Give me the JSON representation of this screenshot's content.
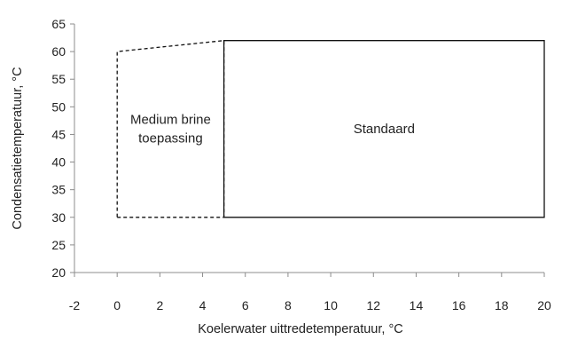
{
  "chart_data": {
    "type": "operating-envelope",
    "xlabel": "Koelerwater uittredetemperatuur, °C",
    "ylabel": "Condensatietemperatuur, °C",
    "xlim": [
      -2,
      20
    ],
    "ylim": [
      20,
      65
    ],
    "x_ticks": [
      -2,
      0,
      2,
      4,
      6,
      8,
      10,
      12,
      14,
      16,
      18,
      20
    ],
    "y_ticks": [
      20,
      25,
      30,
      35,
      40,
      45,
      50,
      55,
      60,
      65
    ],
    "grid": false,
    "regions": [
      {
        "name": "Standaard",
        "label_lines": [
          "Standaard"
        ],
        "line_style": "solid",
        "points": [
          [
            5,
            30
          ],
          [
            20,
            30
          ],
          [
            20,
            62
          ],
          [
            5,
            62
          ]
        ]
      },
      {
        "name": "Medium brine toepassing",
        "label_lines": [
          "Medium brine",
          "toepassing"
        ],
        "line_style": "dashed",
        "points": [
          [
            0,
            30
          ],
          [
            5,
            30
          ],
          [
            5,
            62
          ],
          [
            0,
            60
          ]
        ]
      }
    ]
  }
}
